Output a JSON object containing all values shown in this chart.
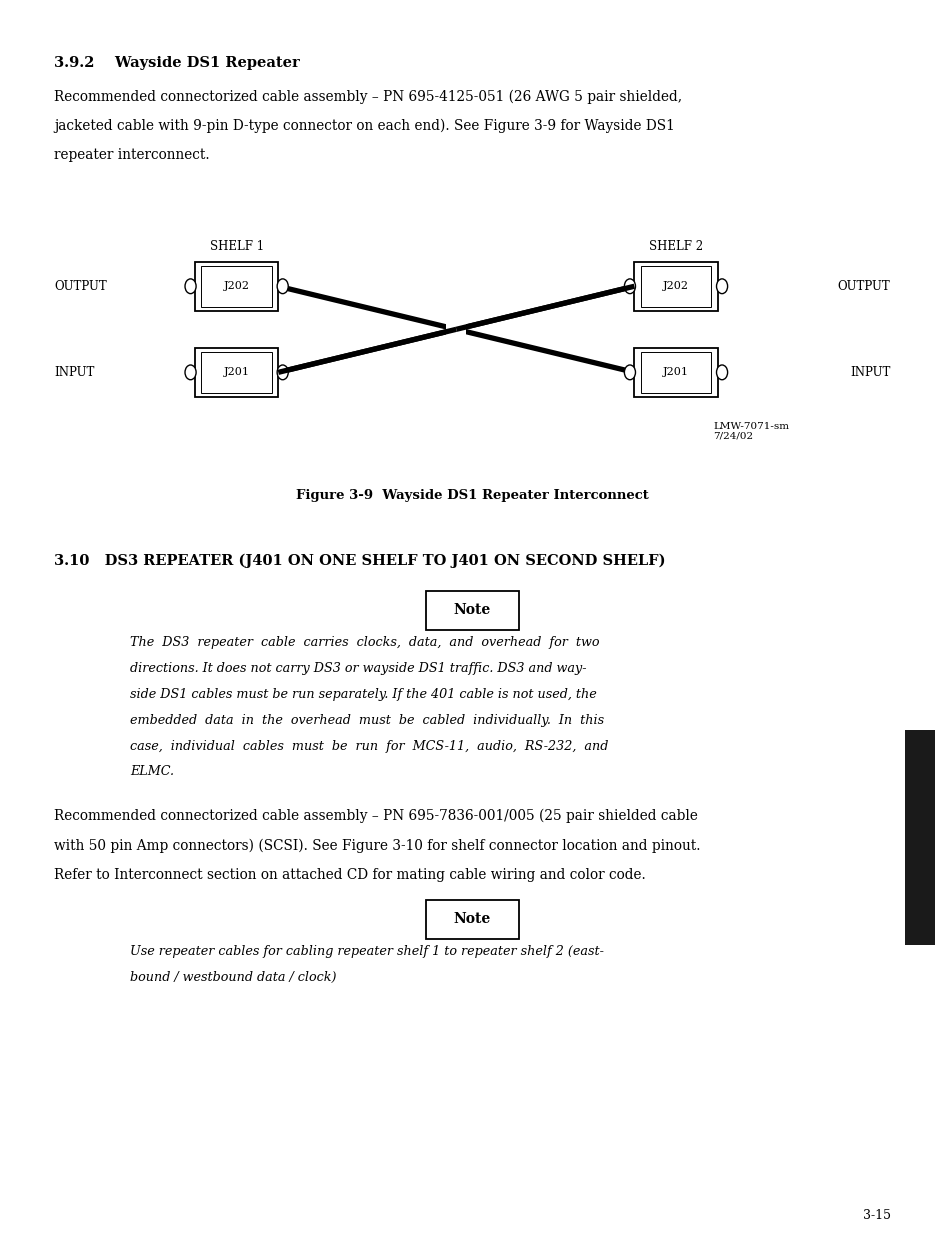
{
  "bg_color": "#ffffff",
  "page_width": 9.25,
  "page_height": 12.3,
  "section_392_title": "3.9.2    Wayside DS1 Repeater",
  "section_392_line1": "Recommended connectorized cable assembly – PN 695-4125-051 (26 AWG 5 pair shielded,",
  "section_392_line2": "jacketed cable with 9-pin D-type connector on each end). See Figure 3-9 for Wayside DS1",
  "section_392_line3": "repeater interconnect.",
  "shelf1_label": "SHELF 1",
  "shelf2_label": "SHELF 2",
  "output_label_left": "OUTPUT",
  "input_label_left": "INPUT",
  "output_label_right": "OUTPUT",
  "input_label_right": "INPUT",
  "j202_left": "J202",
  "j201_left": "J201",
  "j202_right": "J202",
  "j201_right": "J201",
  "watermark": "LMW-7071-sm\n7/24/02",
  "figure_caption_prefix": "Figure 3-9  Wayside DS1 Repeater ",
  "figure_caption_bold": "Interconnect",
  "section_310_title": "3.10   DS3 REPEATER (J401 ON ONE SHELF TO J401 ON SECOND SHELF)",
  "note1_label": "Note",
  "note1_lines": [
    "The  DS3  repeater  cable  carries  clocks,  data,  and  overhead  for  two",
    "directions. It does not carry DS3 or wayside DS1 traffic. DS3 and way-",
    "side DS1 cables must be run separately. If the 401 cable is not used, the",
    "embedded  data  in  the  overhead  must  be  cabled  individually.  In  this",
    "case,  individual  cables  must  be  run  for  MCS-11,  audio,  RS-232,  and",
    "ELMC."
  ],
  "section_310_line1": "Recommended connectorized cable assembly – PN 695-7836-001/005 (25 pair shielded cable",
  "section_310_line2": "with 50 pin Amp connectors) (SCSI). See Figure 3-10 for shelf connector location and pinout.",
  "section_310_line3": "Refer to Interconnect section on attached CD for mating cable wiring and color code.",
  "note2_label": "Note",
  "note2_lines": [
    "Use repeater cables for cabling repeater shelf 1 to repeater shelf 2 (east-",
    "bound / westbound data / clock)"
  ],
  "page_number": "3-15",
  "sidebar_color": "#1a1a1a"
}
